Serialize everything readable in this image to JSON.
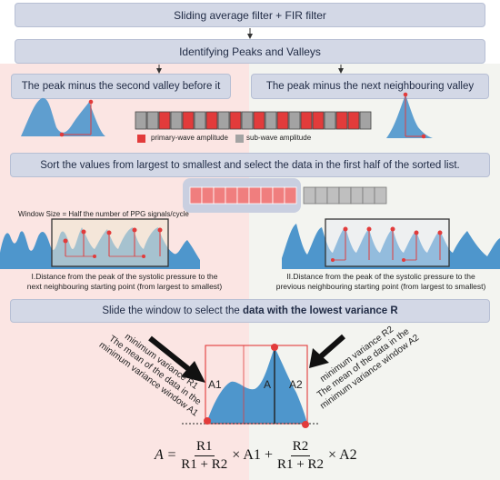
{
  "top_box": "Sliding average filter + FIR filter",
  "peaks_box": "Identifying Peaks and Valleys",
  "left_box": "The peak minus the second valley before it",
  "right_box": "The peak minus the next neighbouring valley",
  "legend": {
    "primary": "primary-wave amplitude",
    "sub": "sub-wave amplitude"
  },
  "sort_box": "Sort the values from largest to smallest and select the data in the first half of the sorted list.",
  "window_size": "Window Size = Half the number of PPG signals/cycle",
  "left_caption": [
    "I.Distance from the peak of the systolic pressure to the",
    "next neighbouring starting point (from largest to smallest)"
  ],
  "right_caption": [
    "II.Distance from the peak of the systolic pressure to the",
    "previous neighbouring starting point (from largest to smallest)"
  ],
  "slide_box_plain": "Slide the window to select the ",
  "slide_box_bold": "data with the lowest variance R",
  "left_rot": [
    "minimum variance R1",
    "The mean of the data in the",
    "minimum variance window A1"
  ],
  "right_rot": [
    "minimum variance R2",
    "The mean of the data in the",
    "minimum variance window A2"
  ],
  "areas": {
    "a1": "A1",
    "a": "A",
    "a2": "A2"
  },
  "formula": {
    "lhs": "A =",
    "num1": "R1",
    "den1": "R1 + R2",
    "mid": "× A1 +",
    "num2": "R2",
    "den2": "R1 + R2",
    "end": "× A2"
  },
  "colors": {
    "box": "#d3d8e6",
    "wave": "#4e96cc",
    "red": "#e23b3b",
    "grey": "#a3a3a3"
  }
}
